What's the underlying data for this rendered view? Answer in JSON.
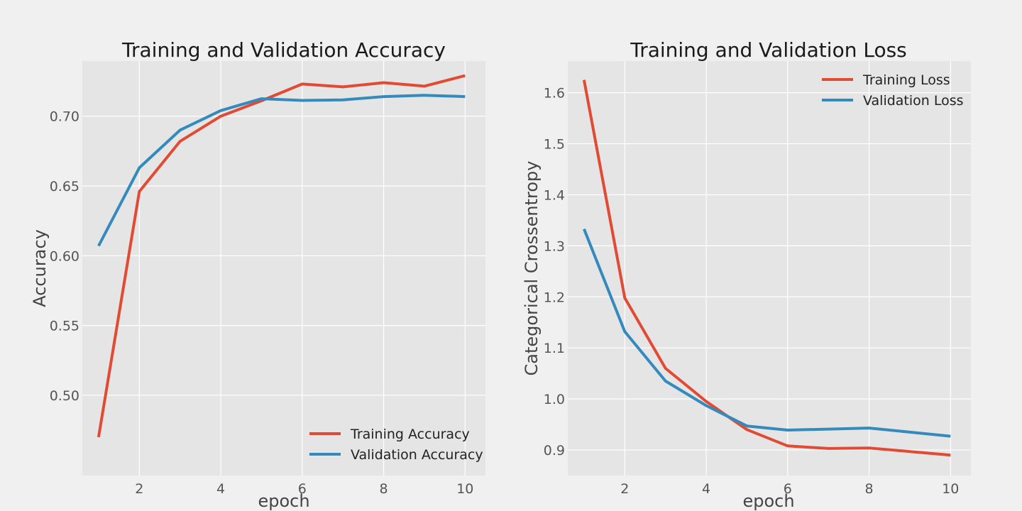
{
  "chart_data": [
    {
      "type": "line",
      "title": "Training and Validation Accuracy",
      "xlabel": "epoch",
      "ylabel": "Accuracy",
      "x": [
        1,
        2,
        3,
        4,
        5,
        6,
        7,
        8,
        9,
        10
      ],
      "xlim": [
        0.6,
        10.5
      ],
      "ylim": [
        0.4425,
        0.7395
      ],
      "xticks": [
        2,
        4,
        6,
        8,
        10
      ],
      "yticks": [
        0.5,
        0.55,
        0.6,
        0.65,
        0.7
      ],
      "xtick_labels": [
        "2",
        "4",
        "6",
        "8",
        "10"
      ],
      "ytick_labels": [
        "0.50",
        "0.55",
        "0.60",
        "0.65",
        "0.70"
      ],
      "grid": true,
      "legend_position": "lower-right",
      "series": [
        {
          "name": "Training Accuracy",
          "color": "#E24A33",
          "values": [
            0.47,
            0.646,
            0.682,
            0.7,
            0.711,
            0.723,
            0.721,
            0.724,
            0.7215,
            0.729
          ]
        },
        {
          "name": "Validation Accuracy",
          "color": "#348ABD",
          "values": [
            0.607,
            0.663,
            0.69,
            0.704,
            0.7125,
            0.7113,
            0.7117,
            0.714,
            0.715,
            0.714
          ]
        }
      ]
    },
    {
      "type": "line",
      "title": "Training and Validation Loss",
      "xlabel": "epoch",
      "ylabel": "Categorical Crossentropy",
      "x": [
        1,
        2,
        3,
        4,
        5,
        6,
        7,
        8,
        9,
        10
      ],
      "xlim": [
        0.6,
        10.5
      ],
      "ylim": [
        0.85,
        1.662
      ],
      "xticks": [
        2,
        4,
        6,
        8,
        10
      ],
      "yticks": [
        0.9,
        1.0,
        1.1,
        1.2,
        1.3,
        1.4,
        1.5,
        1.6
      ],
      "xtick_labels": [
        "2",
        "4",
        "6",
        "8",
        "10"
      ],
      "ytick_labels": [
        "0.9",
        "1.0",
        "1.1",
        "1.2",
        "1.3",
        "1.4",
        "1.5",
        "1.6"
      ],
      "grid": true,
      "legend_position": "upper-right",
      "series": [
        {
          "name": "Training Loss",
          "color": "#E24A33",
          "values": [
            1.625,
            1.198,
            1.06,
            0.995,
            0.94,
            0.908,
            0.903,
            0.904,
            0.897,
            0.89
          ]
        },
        {
          "name": "Validation Loss",
          "color": "#348ABD",
          "values": [
            1.333,
            1.132,
            1.035,
            0.987,
            0.947,
            0.939,
            0.941,
            0.943,
            0.935,
            0.927
          ]
        }
      ]
    }
  ]
}
